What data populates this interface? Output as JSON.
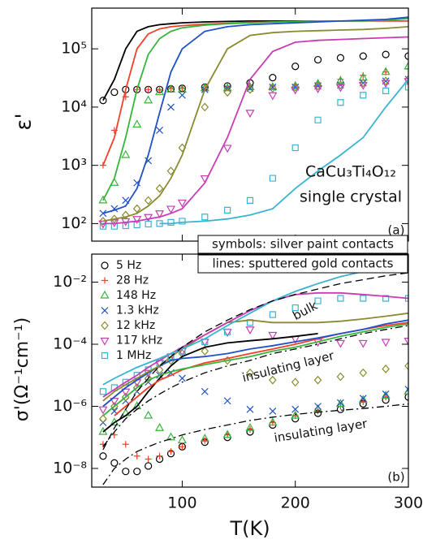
{
  "chart_data": [
    {
      "type": "line",
      "ylabel": "ε'",
      "log_y": true,
      "xlim": [
        20,
        300
      ],
      "ylim": [
        50,
        500000
      ],
      "xticks": [
        100,
        200,
        300
      ],
      "show_xtick_labels": false,
      "yticks": [
        {
          "value": 100,
          "label": "10²"
        },
        {
          "value": 1000,
          "label": "10³"
        },
        {
          "value": 10000,
          "label": "10⁴"
        },
        {
          "value": 100000,
          "label": "10⁵"
        }
      ],
      "annotations": [
        "CaCu₃Ti₄O₁₂",
        "single crystal",
        "(a)",
        "symbols: silver paint contacts",
        "lines: sputtered gold contacts"
      ],
      "x": [
        30,
        40,
        50,
        60,
        70,
        80,
        90,
        100,
        120,
        140,
        160,
        180,
        200,
        220,
        240,
        260,
        280,
        300
      ],
      "series": [
        {
          "color": "#000000",
          "marker": "o",
          "values": [
            13000,
            18000,
            20000,
            20000,
            20000,
            20000,
            20500,
            21000,
            22000,
            23000,
            26000,
            32000,
            50000,
            65000,
            70000,
            75000,
            80000,
            75000
          ]
        },
        {
          "color": "#f0402a",
          "marker": "+",
          "values": [
            1000,
            4000,
            15000,
            20000,
            20000,
            20000,
            21000,
            21000,
            21000,
            22000,
            22000,
            23000,
            24000,
            26000,
            30000,
            35000,
            40000,
            45000
          ]
        },
        {
          "color": "#36b43c",
          "marker": "^",
          "values": [
            250,
            500,
            1500,
            5000,
            13000,
            18000,
            20000,
            20000,
            21000,
            21000,
            22000,
            22000,
            23000,
            25000,
            28000,
            32000,
            40000,
            50000
          ]
        },
        {
          "color": "#2050c8",
          "marker": "x",
          "values": [
            150,
            180,
            250,
            500,
            1200,
            4000,
            10000,
            16000,
            20000,
            21000,
            21000,
            22000,
            22000,
            23000,
            24000,
            26000,
            28000,
            30000
          ]
        },
        {
          "color": "#8a8a30",
          "marker": "d",
          "values": [
            110,
            120,
            140,
            180,
            250,
            400,
            800,
            2000,
            10000,
            18000,
            20000,
            21000,
            22000,
            23000,
            24000,
            26000,
            28000,
            30000
          ]
        },
        {
          "color": "#c83cb4",
          "marker": "v",
          "values": [
            100,
            105,
            110,
            120,
            130,
            150,
            180,
            230,
            600,
            2000,
            8000,
            16000,
            20000,
            21000,
            22000,
            24000,
            26000,
            28000
          ]
        },
        {
          "color": "#38b4d2",
          "marker": "s",
          "values": [
            90,
            90,
            92,
            95,
            98,
            100,
            105,
            110,
            130,
            170,
            250,
            600,
            2000,
            6000,
            12000,
            16000,
            19000,
            22000
          ]
        },
        {
          "color": "#000000",
          "values": [
            13000,
            30000,
            100000,
            200000,
            240000,
            260000,
            270000,
            280000,
            290000,
            295000,
            300000,
            300000,
            300000,
            300000,
            null,
            null,
            null,
            null
          ]
        },
        {
          "color": "#f0402a",
          "values": [
            1000,
            3000,
            20000,
            100000,
            180000,
            220000,
            240000,
            250000,
            265000,
            275000,
            285000,
            290000,
            295000,
            300000,
            300000,
            300000,
            300000,
            300000
          ]
        },
        {
          "color": "#36b43c",
          "values": [
            250,
            600,
            3000,
            20000,
            80000,
            150000,
            200000,
            230000,
            255000,
            270000,
            280000,
            290000,
            295000,
            300000,
            300000,
            300000,
            310000,
            330000
          ]
        },
        {
          "color": "#2050c8",
          "values": [
            150,
            170,
            200,
            400,
            1500,
            8000,
            40000,
            100000,
            200000,
            240000,
            260000,
            270000,
            280000,
            290000,
            300000,
            310000,
            320000,
            350000
          ]
        },
        {
          "color": "#8a8a30",
          "values": [
            110,
            120,
            130,
            150,
            200,
            300,
            600,
            1500,
            20000,
            100000,
            170000,
            190000,
            200000,
            205000,
            210000,
            215000,
            225000,
            240000
          ]
        },
        {
          "color": "#c83cb4",
          "values": [
            100,
            100,
            105,
            110,
            120,
            130,
            150,
            180,
            500,
            3000,
            30000,
            90000,
            130000,
            140000,
            145000,
            150000,
            155000,
            160000
          ]
        },
        {
          "color": "#38b4d2",
          "values": [
            null,
            null,
            null,
            null,
            null,
            100,
            100,
            105,
            110,
            120,
            140,
            180,
            400,
            800,
            1500,
            3000,
            10000,
            30000
          ]
        }
      ]
    },
    {
      "type": "line",
      "ylabel": "σ'(Ω⁻¹cm⁻¹)",
      "xlabel": "T(K)",
      "log_y": true,
      "xlim": [
        20,
        300
      ],
      "ylim": [
        2.5e-09,
        0.08
      ],
      "xticks": [
        100,
        200,
        300
      ],
      "show_xtick_labels": true,
      "yticks": [
        {
          "value": 1e-08,
          "label": "10⁻⁸"
        },
        {
          "value": 1e-06,
          "label": "10⁻⁶"
        },
        {
          "value": 0.0001,
          "label": "10⁻⁴"
        },
        {
          "value": 0.01,
          "label": "10⁻²"
        }
      ],
      "annotations": [
        "bulk",
        "insulating layer",
        "insulating layer",
        "(b)"
      ],
      "legend": "upper left",
      "x": [
        30,
        40,
        50,
        60,
        70,
        80,
        90,
        100,
        120,
        140,
        160,
        180,
        200,
        220,
        240,
        260,
        280,
        300
      ],
      "series": [
        {
          "name": "5 Hz",
          "color": "#000000",
          "marker": "o",
          "values": [
            2.5e-08,
            1.5e-08,
            8e-09,
            8e-09,
            1.2e-08,
            2e-08,
            3e-08,
            5e-08,
            7e-08,
            1e-07,
            1.5e-07,
            2.5e-07,
            4e-07,
            6e-07,
            8e-07,
            1.2e-06,
            1.6e-06,
            2e-06
          ]
        },
        {
          "name": "28 Hz",
          "color": "#f0402a",
          "marker": "+",
          "values": [
            6e-08,
            1.2e-07,
            6e-08,
            2.5e-08,
            2e-08,
            2.5e-08,
            3.5e-08,
            5e-08,
            8e-08,
            1.2e-07,
            1.8e-07,
            3e-07,
            5e-07,
            7e-07,
            1e-06,
            1.4e-06,
            2e-06,
            2.5e-06
          ]
        },
        {
          "name": "148 Hz",
          "color": "#36b43c",
          "marker": "^",
          "values": [
            1.5e-07,
            3e-07,
            6e-07,
            1e-06,
            5e-07,
            2e-07,
            1e-07,
            8e-08,
            9e-08,
            1.2e-07,
            2e-07,
            3e-07,
            5e-07,
            8e-07,
            1.2e-06,
            1.6e-06,
            2.2e-06,
            3e-06
          ]
        },
        {
          "name": "1.3 kHz",
          "color": "#2050c8",
          "marker": "x",
          "values": [
            3e-07,
            7e-07,
            1.5e-06,
            3e-06,
            6e-06,
            1e-05,
            1.2e-05,
            8e-06,
            3e-06,
            1.5e-06,
            8e-07,
            7e-07,
            8e-07,
            1e-06,
            1.3e-06,
            1.8e-06,
            2.5e-06,
            3.5e-06
          ]
        },
        {
          "name": "12 kHz",
          "color": "#8a8a30",
          "marker": "d",
          "values": [
            4e-07,
            1e-06,
            2e-06,
            4e-06,
            8e-06,
            1.5e-05,
            3e-05,
            5e-05,
            6e-05,
            3e-05,
            1.2e-05,
            7e-06,
            6e-06,
            7e-06,
            9e-06,
            1.2e-05,
            1.6e-05,
            2e-05
          ]
        },
        {
          "name": "117 kHz",
          "color": "#c83cb4",
          "marker": "v",
          "values": [
            8e-07,
            1.5e-06,
            3e-06,
            6e-06,
            1.2e-05,
            2.5e-05,
            4e-05,
            6e-05,
            0.00012,
            0.00025,
            0.0003,
            0.0002,
            0.00015,
            0.00012,
            0.00011,
            0.00011,
            0.00012,
            0.00013
          ]
        },
        {
          "name": "1 MHz",
          "color": "#38b4d2",
          "marker": "s",
          "values": [
            3e-06,
            4e-06,
            6e-06,
            1e-05,
            1.5e-05,
            2.5e-05,
            4e-05,
            6e-05,
            0.00012,
            0.00025,
            0.0005,
            0.0009,
            0.0015,
            0.0025,
            0.003,
            0.003,
            0.003,
            0.003
          ]
        },
        {
          "color": "#000000",
          "values": [
            1.5e-07,
            3e-07,
            5e-07,
            1e-06,
            3e-06,
            8e-06,
            2e-05,
            4e-05,
            8e-05,
            0.00011,
            0.00013,
            0.00015,
            0.00018,
            0.00022,
            null,
            null,
            null,
            null
          ]
        },
        {
          "color": "#f0402a",
          "values": [
            null,
            5e-07,
            1e-06,
            2e-06,
            4e-06,
            7e-06,
            1e-05,
            1.5e-05,
            2.5e-05,
            3.5e-05,
            5e-05,
            7e-05,
            0.0001,
            0.00015,
            0.00022,
            0.0003,
            0.0004,
            0.0005
          ]
        },
        {
          "color": "#36b43c",
          "values": [
            5e-07,
            1e-06,
            2e-06,
            4e-06,
            7e-06,
            1e-05,
            1.3e-05,
            1.6e-05,
            2.2e-05,
            3e-05,
            4e-05,
            6e-05,
            8e-05,
            0.00012,
            0.00018,
            0.00025,
            0.00035,
            0.00045
          ]
        },
        {
          "color": "#2050c8",
          "values": [
            1e-06,
            2e-06,
            4e-06,
            7e-06,
            1.2e-05,
            2e-05,
            3e-05,
            3.5e-05,
            4e-05,
            5e-05,
            7e-05,
            9e-05,
            0.00012,
            0.00016,
            0.00022,
            0.0003,
            0.00045,
            0.0006
          ]
        },
        {
          "color": "#8a8a30",
          "values": [
            1.5e-06,
            3e-06,
            5e-06,
            8e-06,
            1.3e-05,
            2e-05,
            4e-05,
            7e-05,
            0.0002,
            0.0005,
            0.0006,
            0.0005,
            0.0005,
            0.0005,
            0.00055,
            0.00065,
            0.0008,
            0.001
          ]
        },
        {
          "color": "#c83cb4",
          "values": [
            2e-06,
            3.5e-06,
            6e-06,
            1e-05,
            1.8e-05,
            3e-05,
            5e-05,
            8e-05,
            0.0002,
            0.0005,
            0.0012,
            0.0025,
            0.004,
            0.0045,
            0.0045,
            0.004,
            0.0035,
            0.003
          ]
        },
        {
          "color": "#38b4d2",
          "values": [
            5e-06,
            8e-06,
            1.2e-05,
            1.8e-05,
            2.5e-05,
            3.5e-05,
            5e-05,
            7e-05,
            0.00015,
            0.0004,
            0.001,
            0.0025,
            0.005,
            0.009,
            0.015,
            0.022,
            0.03,
            0.04
          ]
        },
        {
          "color": "#000000",
          "dash": "dashed",
          "values": [
            4e-08,
            2e-07,
            8e-07,
            3e-06,
            8e-06,
            2e-05,
            4e-05,
            8e-05,
            0.00025,
            0.0006,
            0.0013,
            0.0025,
            0.004,
            0.006,
            0.009,
            0.012,
            0.016,
            0.02
          ]
        },
        {
          "color": "#000000",
          "dash": "dashdot",
          "values": [
            5e-08,
            1.5e-07,
            4e-07,
            8e-07,
            1.5e-06,
            2.5e-06,
            4e-06,
            6e-06,
            1.2e-05,
            2e-05,
            3e-05,
            5e-05,
            7e-05,
            0.0001,
            0.00015,
            0.00022,
            0.0003,
            0.0004
          ]
        },
        {
          "color": "#000000",
          "dash": "dashdot",
          "values": [
            3e-09,
            1e-08,
            2e-08,
            3.5e-08,
            5e-08,
            7e-08,
            9e-08,
            1.2e-07,
            1.8e-07,
            2.5e-07,
            3.5e-07,
            4.5e-07,
            5.5e-07,
            6.5e-07,
            7.5e-07,
            8.5e-07,
            1e-06,
            1.2e-06
          ]
        }
      ]
    }
  ]
}
